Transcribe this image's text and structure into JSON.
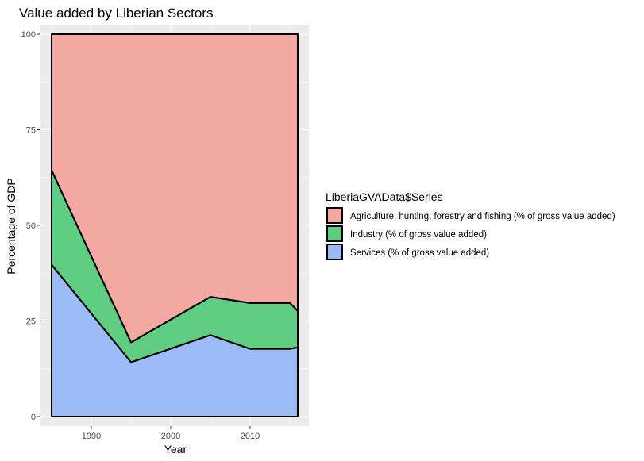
{
  "chart_data": {
    "type": "area",
    "stacked": true,
    "title": "Value added by Liberian Sectors",
    "xlabel": "Year",
    "ylabel": "Percentage of GDP",
    "xlim": [
      1983.6,
      2017.4
    ],
    "ylim": [
      -2.5,
      102.5
    ],
    "xticks": [
      1990,
      2000,
      2010
    ],
    "yticks": [
      0,
      25,
      50,
      75,
      100
    ],
    "grid": true,
    "legend": {
      "title": "LiberiaGVAData$Series",
      "position": "right"
    },
    "x": [
      1985,
      1995,
      2005,
      2010,
      2015,
      2016
    ],
    "series": [
      {
        "name": "Services (% of gross value added)",
        "color": "#99bbf7",
        "values": [
          39.7,
          14.2,
          21.3,
          17.7,
          17.7,
          18.1
        ]
      },
      {
        "name": "Industry (% of gross value added)",
        "color": "#5dcd7f",
        "values": [
          24.7,
          5.2,
          10.0,
          12.0,
          12.0,
          9.5
        ]
      },
      {
        "name": "Agriculture, hunting, forestry and fishing (% of gross value added)",
        "color": "#f4a6a0",
        "values": [
          35.6,
          80.6,
          68.7,
          70.3,
          70.3,
          72.4
        ]
      }
    ],
    "legend_order": [
      "Agriculture, hunting, forestry and fishing (% of gross value added)",
      "Industry (% of gross value added)",
      "Services (% of gross value added)"
    ]
  }
}
